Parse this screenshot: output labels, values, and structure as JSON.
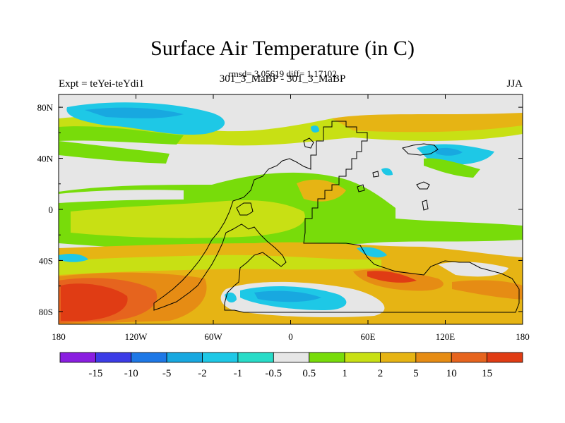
{
  "chart_data": {
    "type": "heatmap",
    "title": "Surface Air Temperature (in C)",
    "subtitle": "rmsd= 3.05619 diff= 1.17102",
    "left_label": "Expt = teYei-teYdi1",
    "center_label": "301_3_MaBP - 301_3_MaBP",
    "right_label": "JJA",
    "x_ticks": [
      "180",
      "120W",
      "60W",
      "0",
      "60E",
      "120E",
      "180"
    ],
    "y_ticks": [
      "80N",
      "40N",
      "0",
      "40S",
      "80S"
    ],
    "xlim": [
      -180,
      180
    ],
    "ylim": [
      -90,
      90
    ],
    "colorbar": {
      "labels": [
        "-15",
        "-10",
        "-5",
        "-2",
        "-1",
        "-0.5",
        "0.5",
        "1",
        "2",
        "5",
        "10",
        "15"
      ],
      "colors": [
        "#8a1ee0",
        "#3c3ce6",
        "#1e78e6",
        "#18a8e0",
        "#1ec8e6",
        "#28dcc8",
        "#e6e6e6",
        "#78dc0a",
        "#c8e014",
        "#e6b414",
        "#e68c14",
        "#e6641e",
        "#e03c14"
      ]
    },
    "regions": [
      {
        "name": "zero-background",
        "level": "-0.5 to 0.5"
      },
      {
        "name": "south-pacific-max",
        "level": ">15"
      },
      {
        "name": "southern-ocean-band",
        "level": "5 to 10"
      },
      {
        "name": "arctic-pacific-cool",
        "level": "-2 to -1"
      },
      {
        "name": "antarctic-weddell-cool",
        "level": "-2 to -1"
      }
    ]
  }
}
